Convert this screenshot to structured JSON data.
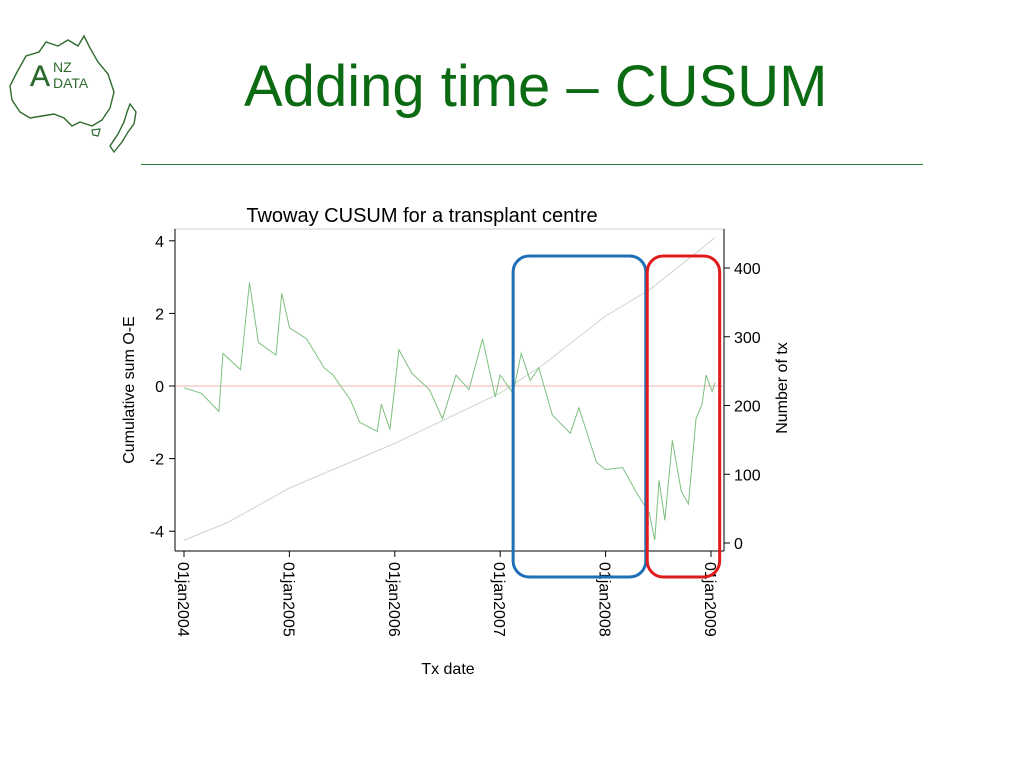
{
  "slide": {
    "title": "Adding time – CUSUM",
    "logo_text_line1": "NZ",
    "logo_text_line2": "DATA",
    "logo_letter": "A"
  },
  "colors": {
    "title": "#0b6b12",
    "cusum_line": "#7fbf7f",
    "count_line": "#c8d8c8",
    "zero_line": "#f2b3b3",
    "highlight_blue": "#1f6fb8",
    "highlight_red": "#e01b1b"
  },
  "chart_data": {
    "type": "line",
    "title": "Twoway CUSUM for a transplant centre",
    "xlabel": "Tx date",
    "ylabel": "Cumulative sum O-E",
    "y2label": "Number of tx",
    "x_ticks": [
      "01jan2004",
      "01jan2005",
      "01jan2006",
      "01jan2007",
      "01jan2008",
      "01jan2009"
    ],
    "xlim": [
      "2004-01-01",
      "2009-01-31"
    ],
    "ylim": [
      -4.3,
      4.3
    ],
    "y_ticks": [
      -4,
      -2,
      0,
      2,
      4
    ],
    "y2lim": [
      -8,
      440
    ],
    "y2_ticks": [
      0,
      100,
      200,
      300,
      400
    ],
    "reference_line_y": 0,
    "series": [
      {
        "name": "Cumulative sum O-E",
        "axis": "left",
        "points": [
          [
            "2004-01-01",
            -0.05
          ],
          [
            "2004-03-01",
            -0.2
          ],
          [
            "2004-05-01",
            -0.7
          ],
          [
            "2004-05-15",
            0.9
          ],
          [
            "2004-07-15",
            0.45
          ],
          [
            "2004-08-15",
            2.85
          ],
          [
            "2004-09-15",
            1.2
          ],
          [
            "2004-11-15",
            0.85
          ],
          [
            "2004-12-05",
            2.55
          ],
          [
            "2005-01-01",
            1.6
          ],
          [
            "2005-03-01",
            1.3
          ],
          [
            "2005-05-01",
            0.5
          ],
          [
            "2005-06-01",
            0.3
          ],
          [
            "2005-08-01",
            -0.4
          ],
          [
            "2005-09-01",
            -1.0
          ],
          [
            "2005-11-01",
            -1.25
          ],
          [
            "2005-11-15",
            -0.5
          ],
          [
            "2005-12-15",
            -1.2
          ],
          [
            "2006-01-15",
            1.0
          ],
          [
            "2006-03-01",
            0.35
          ],
          [
            "2006-05-01",
            -0.1
          ],
          [
            "2006-06-15",
            -0.9
          ],
          [
            "2006-08-01",
            0.3
          ],
          [
            "2006-09-15",
            -0.1
          ],
          [
            "2006-11-01",
            1.3
          ],
          [
            "2006-11-20",
            0.6
          ],
          [
            "2006-12-15",
            -0.3
          ],
          [
            "2007-01-01",
            0.3
          ],
          [
            "2007-02-15",
            -0.2
          ],
          [
            "2007-03-15",
            0.9
          ],
          [
            "2007-04-15",
            0.15
          ],
          [
            "2007-05-15",
            0.5
          ],
          [
            "2007-07-01",
            -0.8
          ],
          [
            "2007-09-01",
            -1.3
          ],
          [
            "2007-10-01",
            -0.6
          ],
          [
            "2007-12-01",
            -2.1
          ],
          [
            "2008-01-01",
            -2.3
          ],
          [
            "2008-03-01",
            -2.25
          ],
          [
            "2008-04-15",
            -2.9
          ],
          [
            "2008-06-01",
            -3.5
          ],
          [
            "2008-06-20",
            -4.25
          ],
          [
            "2008-07-05",
            -2.6
          ],
          [
            "2008-07-25",
            -3.7
          ],
          [
            "2008-08-20",
            -1.5
          ],
          [
            "2008-09-20",
            -2.9
          ],
          [
            "2008-10-15",
            -3.25
          ],
          [
            "2008-11-10",
            -0.9
          ],
          [
            "2008-12-01",
            -0.5
          ],
          [
            "2008-12-15",
            0.3
          ],
          [
            "2009-01-05",
            -0.15
          ],
          [
            "2009-01-15",
            0.1
          ]
        ]
      },
      {
        "name": "Number of tx",
        "axis": "right",
        "points": [
          [
            "2004-01-01",
            4
          ],
          [
            "2004-06-01",
            30
          ],
          [
            "2005-01-01",
            80
          ],
          [
            "2006-01-01",
            145
          ],
          [
            "2007-01-01",
            218
          ],
          [
            "2007-06-01",
            260
          ],
          [
            "2008-01-01",
            330
          ],
          [
            "2008-06-01",
            368
          ],
          [
            "2009-01-15",
            444
          ]
        ]
      }
    ],
    "highlights": [
      {
        "from": "2007-02-15",
        "to": "2008-05-20",
        "color": "blue"
      },
      {
        "from": "2008-05-25",
        "to": "2009-01-31",
        "color": "red"
      }
    ]
  }
}
